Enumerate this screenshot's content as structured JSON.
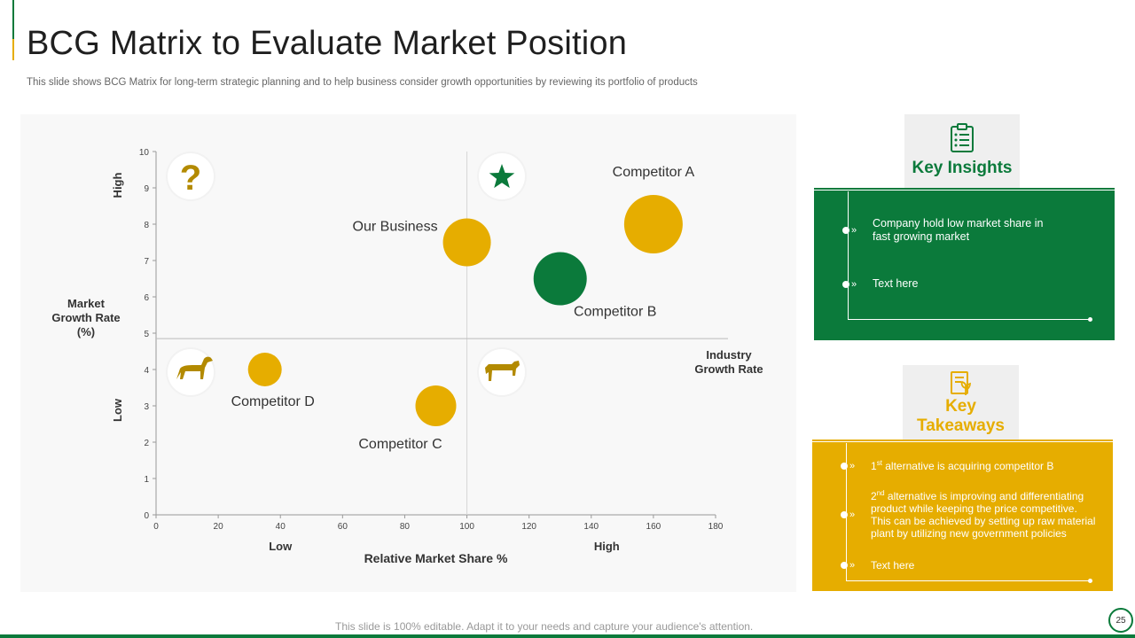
{
  "slide": {
    "title": "BCG Matrix to Evaluate Market Position",
    "subtitle": "This slide shows BCG Matrix for long-term strategic planning and to help business consider growth opportunities by reviewing its portfolio of products",
    "footer": "This slide is 100% editable. Adapt it to your needs and capture your audience's attention.",
    "page_number": "25"
  },
  "chart_data": {
    "type": "scatter",
    "xlabel": "Relative Market Share %",
    "ylabel": "Market Growth Rate (%)",
    "x_ticks": [
      0,
      20,
      40,
      60,
      80,
      100,
      120,
      140,
      160,
      180
    ],
    "y_ticks": [
      0,
      1,
      2,
      3,
      4,
      5,
      6,
      7,
      8,
      9,
      10
    ],
    "xlim": [
      0,
      180
    ],
    "ylim": [
      0,
      10
    ],
    "x_divider": 100,
    "y_divider": 4.85,
    "quadrant_line_label": "Industry Growth Rate",
    "x_low_label": "Low",
    "x_high_label": "High",
    "y_low_label": "Low",
    "y_high_label": "High",
    "quadrant_icons": [
      "question-mark-icon",
      "star-icon",
      "dog-icon",
      "cow-icon"
    ],
    "points": [
      {
        "label": "Our Business",
        "x": 100,
        "y": 7.5,
        "color": "#e6ad00"
      },
      {
        "label": "Competitor A",
        "x": 160,
        "y": 8.0,
        "color": "#e6ad00"
      },
      {
        "label": "Competitor B",
        "x": 130,
        "y": 6.5,
        "color": "#0b7a3b"
      },
      {
        "label": "Competitor D",
        "x": 35,
        "y": 4.0,
        "color": "#e6ad00"
      },
      {
        "label": "Competitor C",
        "x": 90,
        "y": 3.0,
        "color": "#e6ad00"
      }
    ],
    "grid": false
  },
  "insights": {
    "title": "Key Insights",
    "bullets": [
      {
        "lines": [
          "Company hold low market share in",
          "fast growing market"
        ]
      },
      {
        "lines": [
          "Text here"
        ]
      }
    ]
  },
  "takeaways": {
    "title_line1": "Key",
    "title_line2": "Takeaways",
    "bullet1_ordinal": "1",
    "bullet1_sup": "st",
    "bullet1_text": " alternative is acquiring competitor B",
    "bullet2_ordinal": "2",
    "bullet2_sup": "nd",
    "bullet2_line1": " alternative is improving and differentiating",
    "bullet2_lines": [
      "product while keeping the price competitive.",
      "This can be achieved by setting up raw material",
      "plant by utilizing new government policies"
    ],
    "bullet3_text": "Text here"
  },
  "colors": {
    "green": "#0b7a3b",
    "gold": "#e6ad00"
  }
}
